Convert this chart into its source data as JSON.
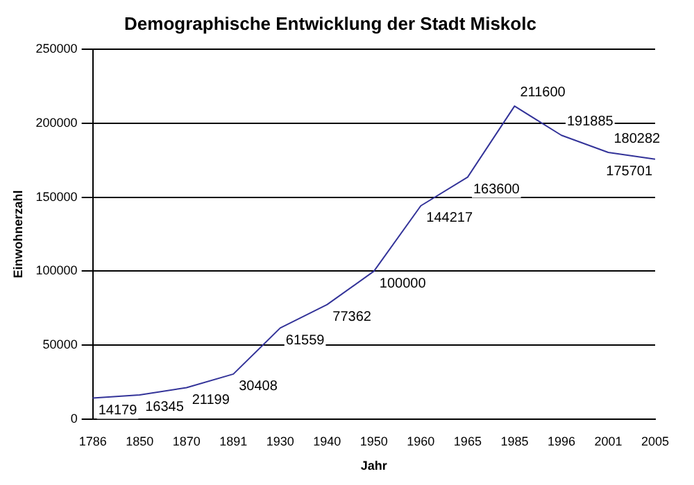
{
  "chart_data": {
    "type": "line",
    "title": "Demographische Entwicklung der Stadt Miskolc",
    "xlabel": "Jahr",
    "ylabel": "Einwohnerzahl",
    "categories": [
      "1786",
      "1850",
      "1870",
      "1891",
      "1930",
      "1940",
      "1950",
      "1960",
      "1965",
      "1985",
      "1996",
      "2001",
      "2005"
    ],
    "series": [
      {
        "color": "#333399",
        "values": [
          14179,
          16345,
          21199,
          30408,
          61559,
          77362,
          100000,
          144217,
          163600,
          211600,
          191885,
          180282,
          175701
        ]
      }
    ],
    "ylim": [
      0,
      250000
    ],
    "yticks": [
      0,
      50000,
      100000,
      150000,
      200000,
      250000
    ],
    "grid": "y",
    "legend": false,
    "marker": "none",
    "line_style": "solid",
    "data_labels": true
  }
}
